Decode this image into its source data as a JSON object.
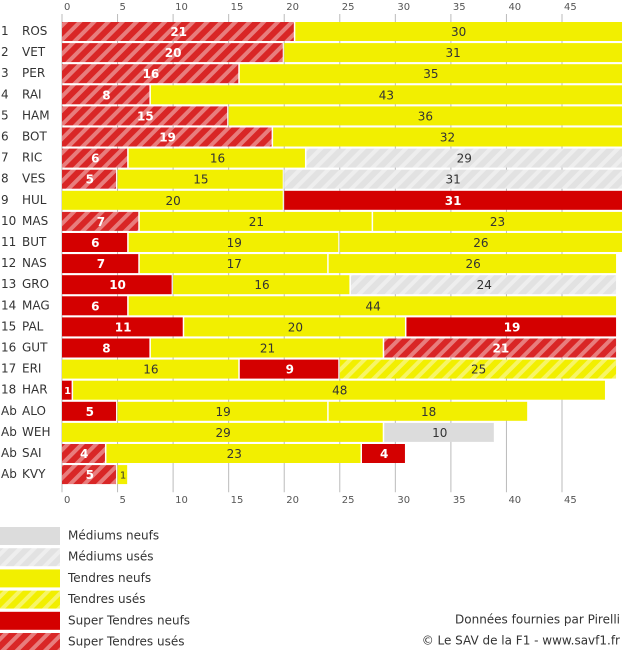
{
  "chart_data": {
    "type": "bar",
    "orientation": "horizontal",
    "stacked": true,
    "xlim": [
      0,
      50.4
    ],
    "xticks": [
      0,
      5,
      10,
      15,
      20,
      25,
      30,
      35,
      40,
      45
    ],
    "grid": true,
    "legend": [
      {
        "name": "Médiums neufs",
        "color": "#dcdcdc",
        "hatched": false
      },
      {
        "name": "Médiums usés",
        "color": "#e2e2e2",
        "hatched": true
      },
      {
        "name": "Tendres neufs",
        "color": "#f2ef00",
        "hatched": false
      },
      {
        "name": "Tendres usés",
        "color": "#f2ef00",
        "hatched": true
      },
      {
        "name": "Super Tendres neufs",
        "color": "#d40000",
        "hatched": false
      },
      {
        "name": "Super Tendres usés",
        "color": "#d92626",
        "hatched": true
      }
    ],
    "rows": [
      {
        "pos": "1",
        "driver": "ROS",
        "stints": [
          {
            "compound": "Super Tendres usés",
            "laps": 21
          },
          {
            "compound": "Tendres neufs",
            "laps": 30
          }
        ]
      },
      {
        "pos": "2",
        "driver": "VET",
        "stints": [
          {
            "compound": "Super Tendres usés",
            "laps": 20
          },
          {
            "compound": "Tendres neufs",
            "laps": 31
          }
        ]
      },
      {
        "pos": "3",
        "driver": "PER",
        "stints": [
          {
            "compound": "Super Tendres usés",
            "laps": 16
          },
          {
            "compound": "Tendres neufs",
            "laps": 35
          }
        ]
      },
      {
        "pos": "4",
        "driver": "RAI",
        "stints": [
          {
            "compound": "Super Tendres usés",
            "laps": 8
          },
          {
            "compound": "Tendres neufs",
            "laps": 43
          }
        ]
      },
      {
        "pos": "5",
        "driver": "HAM",
        "stints": [
          {
            "compound": "Super Tendres usés",
            "laps": 15
          },
          {
            "compound": "Tendres neufs",
            "laps": 36
          }
        ]
      },
      {
        "pos": "6",
        "driver": "BOT",
        "stints": [
          {
            "compound": "Super Tendres usés",
            "laps": 19
          },
          {
            "compound": "Tendres neufs",
            "laps": 32
          }
        ]
      },
      {
        "pos": "7",
        "driver": "RIC",
        "stints": [
          {
            "compound": "Super Tendres usés",
            "laps": 6
          },
          {
            "compound": "Tendres neufs",
            "laps": 16
          },
          {
            "compound": "Médiums usés",
            "laps": 29
          }
        ]
      },
      {
        "pos": "8",
        "driver": "VES",
        "stints": [
          {
            "compound": "Super Tendres usés",
            "laps": 5
          },
          {
            "compound": "Tendres neufs",
            "laps": 15
          },
          {
            "compound": "Médiums usés",
            "laps": 31
          }
        ]
      },
      {
        "pos": "9",
        "driver": "HUL",
        "stints": [
          {
            "compound": "Tendres neufs",
            "laps": 20
          },
          {
            "compound": "Super Tendres neufs",
            "laps": 31
          }
        ]
      },
      {
        "pos": "10",
        "driver": "MAS",
        "stints": [
          {
            "compound": "Super Tendres usés",
            "laps": 7
          },
          {
            "compound": "Tendres neufs",
            "laps": 21
          },
          {
            "compound": "Tendres neufs",
            "laps": 23
          }
        ]
      },
      {
        "pos": "11",
        "driver": "BUT",
        "stints": [
          {
            "compound": "Super Tendres neufs",
            "laps": 6
          },
          {
            "compound": "Tendres neufs",
            "laps": 19
          },
          {
            "compound": "Tendres neufs",
            "laps": 26
          }
        ]
      },
      {
        "pos": "12",
        "driver": "NAS",
        "stints": [
          {
            "compound": "Super Tendres neufs",
            "laps": 7
          },
          {
            "compound": "Tendres neufs",
            "laps": 17
          },
          {
            "compound": "Tendres neufs",
            "laps": 26
          }
        ]
      },
      {
        "pos": "13",
        "driver": "GRO",
        "stints": [
          {
            "compound": "Super Tendres neufs",
            "laps": 10
          },
          {
            "compound": "Tendres neufs",
            "laps": 16
          },
          {
            "compound": "Médiums usés",
            "laps": 24
          }
        ]
      },
      {
        "pos": "14",
        "driver": "MAG",
        "stints": [
          {
            "compound": "Super Tendres neufs",
            "laps": 6
          },
          {
            "compound": "Tendres neufs",
            "laps": 44
          }
        ]
      },
      {
        "pos": "15",
        "driver": "PAL",
        "stints": [
          {
            "compound": "Super Tendres neufs",
            "laps": 11
          },
          {
            "compound": "Tendres neufs",
            "laps": 20
          },
          {
            "compound": "Super Tendres neufs",
            "laps": 19
          }
        ]
      },
      {
        "pos": "16",
        "driver": "GUT",
        "stints": [
          {
            "compound": "Super Tendres neufs",
            "laps": 8
          },
          {
            "compound": "Tendres neufs",
            "laps": 21
          },
          {
            "compound": "Super Tendres usés",
            "laps": 21
          }
        ]
      },
      {
        "pos": "17",
        "driver": "ERI",
        "stints": [
          {
            "compound": "Tendres neufs",
            "laps": 16
          },
          {
            "compound": "Super Tendres neufs",
            "laps": 9
          },
          {
            "compound": "Tendres usés",
            "laps": 25
          }
        ]
      },
      {
        "pos": "18",
        "driver": "HAR",
        "stints": [
          {
            "compound": "Super Tendres neufs",
            "laps": 1
          },
          {
            "compound": "Tendres neufs",
            "laps": 48
          }
        ]
      },
      {
        "pos": "Ab",
        "driver": "ALO",
        "stints": [
          {
            "compound": "Super Tendres neufs",
            "laps": 5
          },
          {
            "compound": "Tendres neufs",
            "laps": 19
          },
          {
            "compound": "Tendres neufs",
            "laps": 18
          }
        ]
      },
      {
        "pos": "Ab",
        "driver": "WEH",
        "stints": [
          {
            "compound": "Tendres neufs",
            "laps": 29
          },
          {
            "compound": "Médiums neufs",
            "laps": 10
          }
        ]
      },
      {
        "pos": "Ab",
        "driver": "SAI",
        "stints": [
          {
            "compound": "Super Tendres usés",
            "laps": 4
          },
          {
            "compound": "Tendres neufs",
            "laps": 23
          },
          {
            "compound": "Super Tendres neufs",
            "laps": 4
          }
        ]
      },
      {
        "pos": "Ab",
        "driver": "KVY",
        "stints": [
          {
            "compound": "Super Tendres usés",
            "laps": 5
          },
          {
            "compound": "Tendres neufs",
            "laps": 1
          }
        ]
      }
    ],
    "source": "Données fournies par Pirelli",
    "credit": "© Le SAV de la F1 - www.savf1.fr"
  }
}
